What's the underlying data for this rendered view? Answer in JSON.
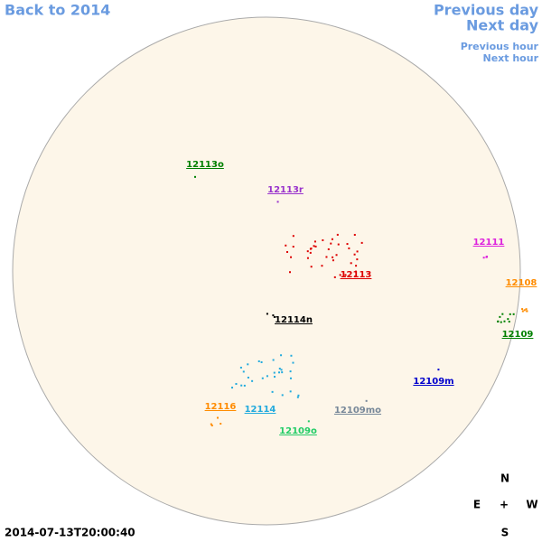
{
  "navigation": {
    "back": "Back to 2014",
    "previous_day": "Previous day",
    "next_day": "Next day",
    "previous_hour": "Previous hour",
    "next_hour": "Next hour"
  },
  "regions": [
    {
      "label": "12113o",
      "color": "#008000"
    },
    {
      "label": "12113r",
      "color": "#9933cc"
    },
    {
      "label": "12111",
      "color": "#dd22dd"
    },
    {
      "label": "12113",
      "color": "#dd0000"
    },
    {
      "label": "12108",
      "color": "#ff8c00"
    },
    {
      "label": "12114n",
      "color": "#000000"
    },
    {
      "label": "12109",
      "color": "#008000"
    },
    {
      "label": "12109m",
      "color": "#0000cc"
    },
    {
      "label": "12116",
      "color": "#ff8c00"
    },
    {
      "label": "12114",
      "color": "#22aadd"
    },
    {
      "label": "12109mo",
      "color": "#778899"
    },
    {
      "label": "12109o",
      "color": "#22cc66"
    }
  ],
  "timestamp": "2014-07-13T20:00:40",
  "compass": {
    "north": "N",
    "east": "E",
    "center": "+",
    "west": "W",
    "south": "S"
  }
}
